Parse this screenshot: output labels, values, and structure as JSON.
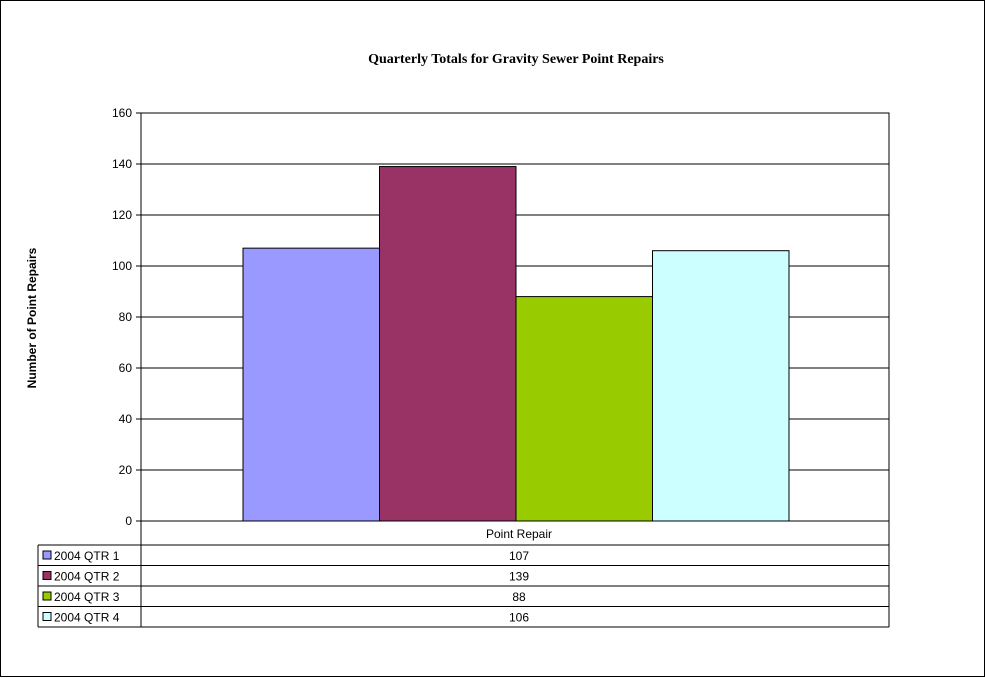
{
  "chart_data": {
    "type": "bar",
    "title": "Quarterly Totals for Gravity Sewer Point Repairs",
    "ylabel": "Number of Point Repairs",
    "xlabel": "",
    "categories": [
      "Point Repair"
    ],
    "series": [
      {
        "name": "2004 QTR 1",
        "values": [
          107
        ],
        "color": "#9999ff"
      },
      {
        "name": "2004 QTR 2",
        "values": [
          139
        ],
        "color": "#993366"
      },
      {
        "name": "2004 QTR 3",
        "values": [
          88
        ],
        "color": "#99cc00"
      },
      {
        "name": "2004 QTR 4",
        "values": [
          106
        ],
        "color": "#ccffff"
      }
    ],
    "ylim": [
      0,
      160
    ],
    "yticks": [
      0,
      20,
      40,
      60,
      80,
      100,
      120,
      140,
      160
    ],
    "grid": true,
    "legend": "data-table-below"
  }
}
